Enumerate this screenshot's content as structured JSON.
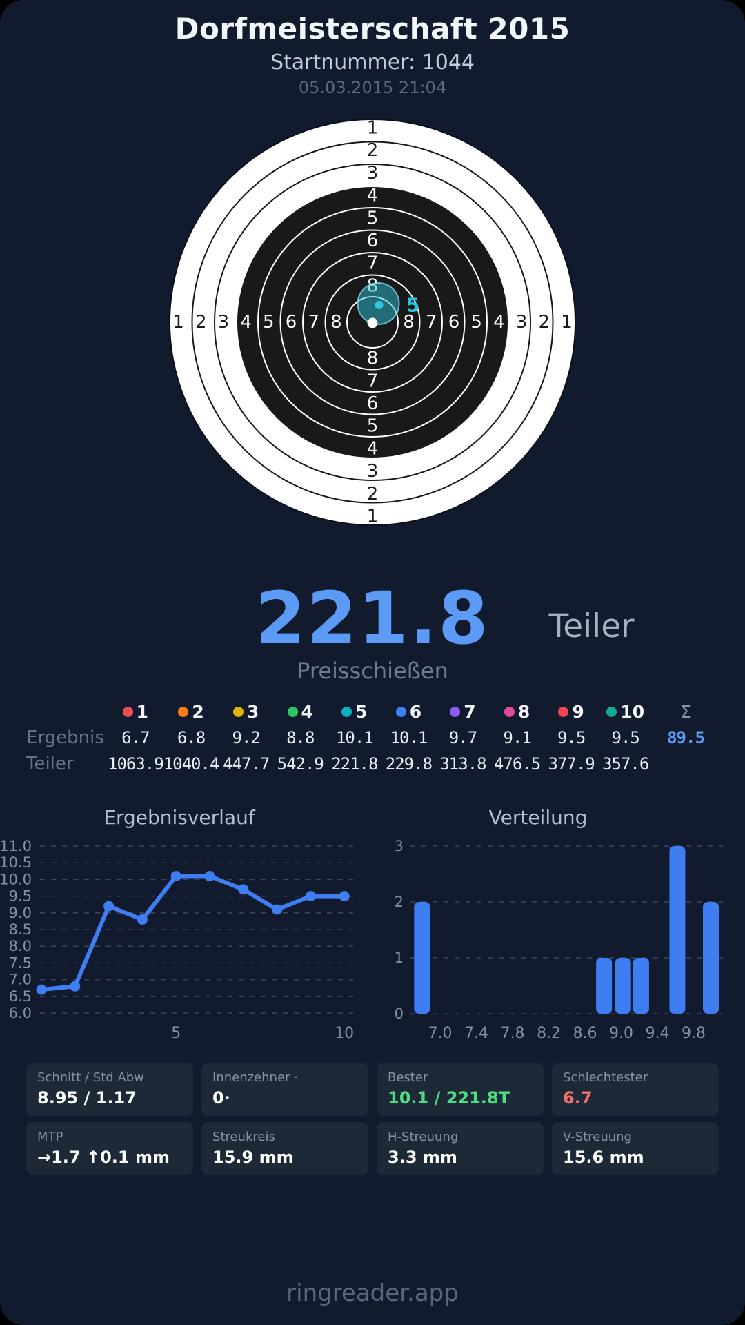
{
  "header": {
    "title": "Dorfmeisterschaft 2015",
    "startnummer": "Startnummer: 1044",
    "datetime": "05.03.2015 21:04"
  },
  "target": {
    "ring_numbers": [
      1,
      2,
      3,
      4,
      5,
      6,
      7,
      8
    ],
    "selected_shot_label": "5",
    "colors": {
      "paper": "#ffffff",
      "black_zone": "#191919",
      "group_circle_fill": "#2bc0d8",
      "group_circle_stroke": "#8ee2f0",
      "mtp_dot": "#2ec9de",
      "shot_dot": "#ffffff",
      "shot_label": "#25c4de"
    }
  },
  "score": {
    "value": "221.8",
    "unit": "Teiler",
    "discipline": "Preisschießen"
  },
  "table": {
    "row_label_ergebnis": "Ergebnis",
    "row_label_teiler": "Teiler",
    "sum_symbol": "Σ",
    "ergebnis_sum": "89.5",
    "shots": [
      {
        "n": "1",
        "color": "#ef4d55",
        "ergebnis": "6.7",
        "teiler": "1063.9"
      },
      {
        "n": "2",
        "color": "#f97d16",
        "ergebnis": "6.8",
        "teiler": "1040.4"
      },
      {
        "n": "3",
        "color": "#e3b308",
        "ergebnis": "9.2",
        "teiler": "447.7"
      },
      {
        "n": "4",
        "color": "#2fc560",
        "ergebnis": "8.8",
        "teiler": "542.9"
      },
      {
        "n": "5",
        "color": "#0cb0c0",
        "ergebnis": "10.1",
        "teiler": "221.8"
      },
      {
        "n": "6",
        "color": "#3b82f6",
        "ergebnis": "10.1",
        "teiler": "229.8"
      },
      {
        "n": "7",
        "color": "#8b5cf6",
        "ergebnis": "9.7",
        "teiler": "313.8"
      },
      {
        "n": "8",
        "color": "#e0489b",
        "ergebnis": "9.1",
        "teiler": "476.5"
      },
      {
        "n": "9",
        "color": "#ef4456",
        "ergebnis": "9.5",
        "teiler": "377.9"
      },
      {
        "n": "10",
        "color": "#16a896",
        "ergebnis": "9.5",
        "teiler": "357.6"
      }
    ]
  },
  "chart_data": [
    {
      "type": "line",
      "title": "Ergebnisverlauf",
      "x": [
        1,
        2,
        3,
        4,
        5,
        6,
        7,
        8,
        9,
        10
      ],
      "values": [
        6.7,
        6.8,
        9.2,
        8.8,
        10.1,
        10.1,
        9.7,
        9.1,
        9.5,
        9.5
      ],
      "ylim": [
        6.0,
        11.0
      ],
      "ytick_step": 0.5,
      "xticks": [
        5,
        10
      ],
      "grid": "dashed",
      "line_color": "#3e7df2"
    },
    {
      "type": "bar",
      "title": "Verteilung",
      "bin_centers": [
        6.8,
        8.81,
        9.02,
        9.22,
        9.62,
        9.99
      ],
      "counts": [
        2,
        1,
        1,
        1,
        3,
        2
      ],
      "ylim": [
        0,
        3
      ],
      "yticks": [
        3,
        2,
        1,
        0
      ],
      "xticks": [
        7.0,
        7.4,
        7.8,
        8.2,
        8.6,
        9.0,
        9.4,
        9.8
      ],
      "xlim": [
        6.55,
        10.07
      ],
      "grid": "dashed",
      "bar_color": "#3e7df2"
    }
  ],
  "chart_style": {
    "grid_color": "#3a445c",
    "tick_color": "#848fa3"
  },
  "cards": [
    {
      "label": "Schnitt / Std Abw",
      "value": "8.95 / 1.17",
      "color": "#ffffff"
    },
    {
      "label": "Innenzehner ·",
      "value": "0·",
      "color": "#ffffff"
    },
    {
      "label": "Bester",
      "value": "10.1 / 221.8T",
      "color": "#4ade80"
    },
    {
      "label": "Schlechtester",
      "value": "6.7",
      "color": "#f3716c"
    },
    {
      "label": "MTP",
      "value": "→1.7 ↑0.1 mm",
      "color": "#ffffff"
    },
    {
      "label": "Streukreis",
      "value": "15.9 mm",
      "color": "#ffffff"
    },
    {
      "label": "H-Streuung",
      "value": "3.3 mm",
      "color": "#ffffff"
    },
    {
      "label": "V-Streuung",
      "value": "15.6 mm",
      "color": "#ffffff"
    }
  ],
  "footer": {
    "brand": "ringreader.app"
  }
}
